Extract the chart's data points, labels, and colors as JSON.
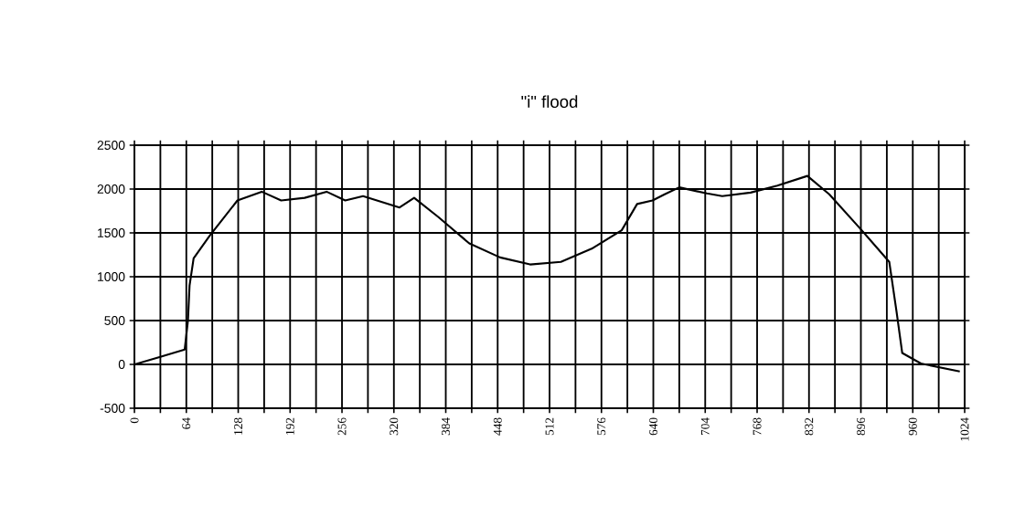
{
  "chart_data": {
    "type": "line",
    "title": "\"i\" flood",
    "x": [
      0,
      30,
      62,
      66,
      68,
      73,
      93,
      127,
      157,
      181,
      210,
      237,
      260,
      282,
      327,
      345,
      375,
      413,
      451,
      488,
      526,
      564,
      601,
      620,
      639,
      654,
      672,
      706,
      725,
      760,
      793,
      830,
      857,
      897,
      931,
      940,
      947,
      970,
      1018
    ],
    "values": [
      0,
      80,
      170,
      500,
      900,
      1210,
      1470,
      1870,
      1970,
      1870,
      1900,
      1970,
      1870,
      1920,
      1790,
      1900,
      1680,
      1380,
      1220,
      1140,
      1170,
      1320,
      1530,
      1830,
      1870,
      1940,
      2020,
      1950,
      1920,
      1960,
      2040,
      2150,
      1940,
      1530,
      1170,
      600,
      130,
      10,
      -80
    ],
    "color": "#000000",
    "xlim": [
      0,
      1024
    ],
    "xticks": [
      0,
      {
        "value": 32,
        "label": null
      },
      64,
      {
        "value": 96,
        "label": null
      },
      128,
      {
        "value": 160,
        "label": null
      },
      192,
      {
        "value": 224,
        "label": null
      },
      256,
      {
        "value": 288,
        "label": null
      },
      320,
      {
        "value": 352,
        "label": null
      },
      384,
      {
        "value": 416,
        "label": null
      },
      448,
      {
        "value": 480,
        "label": null
      },
      512,
      {
        "value": 544,
        "label": null
      },
      576,
      {
        "value": 608,
        "label": null
      },
      640,
      {
        "value": 672,
        "label": null
      },
      704,
      {
        "value": 736,
        "label": null
      },
      768,
      {
        "value": 800,
        "label": null
      },
      832,
      {
        "value": 864,
        "label": null
      },
      896,
      {
        "value": 928,
        "label": null
      },
      960,
      {
        "value": 992,
        "label": null
      },
      1024
    ],
    "ylim": [
      -500,
      2500
    ],
    "yticks": [
      -500,
      0,
      500,
      1000,
      1500,
      2000,
      2500
    ],
    "grid": true,
    "marker": "none",
    "line_style": "solid"
  }
}
